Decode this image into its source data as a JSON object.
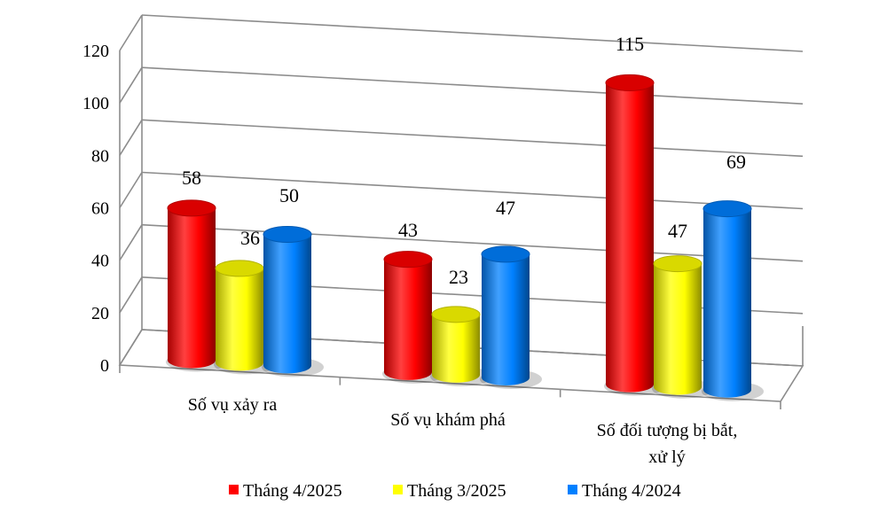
{
  "chart_data": {
    "type": "bar",
    "categories": [
      "Số vụ xảy ra",
      "Số vụ khám phá",
      "Số đối tượng bị bắt, xử lý"
    ],
    "series": [
      {
        "name": "Tháng 4/2025",
        "values": [
          58,
          43,
          115
        ],
        "color": "#ff0000"
      },
      {
        "name": "Tháng 3/2025",
        "values": [
          36,
          23,
          47
        ],
        "color": "#ffff00"
      },
      {
        "name": "Tháng 4/2024",
        "values": [
          50,
          47,
          69
        ],
        "color": "#0080ff"
      }
    ],
    "yticks": [
      "0",
      "20",
      "40",
      "60",
      "80",
      "100",
      "120"
    ],
    "ylim": [
      0,
      120
    ],
    "grid": true,
    "legend_position": "bottom",
    "style": "3d-cylinder"
  }
}
